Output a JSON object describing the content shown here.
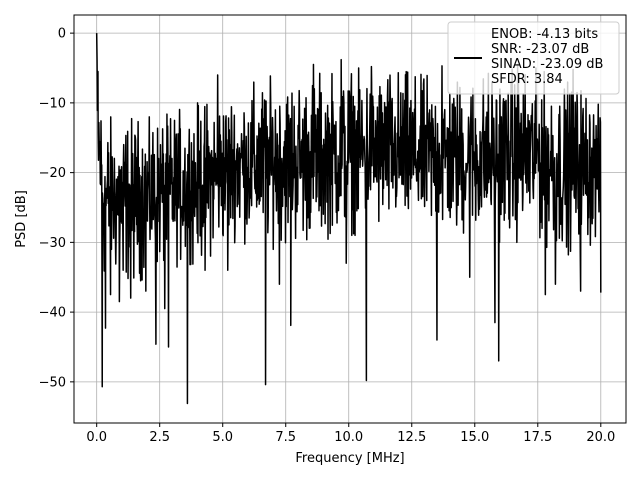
{
  "chart_data": {
    "type": "line",
    "xlabel": "Frequency [MHz]",
    "ylabel": "PSD [dB]",
    "xlim": [
      -0.9,
      21.0
    ],
    "ylim": [
      -55.9,
      2.6
    ],
    "xticks": [
      0.0,
      2.5,
      5.0,
      7.5,
      10.0,
      12.5,
      15.0,
      17.5,
      20.0
    ],
    "xtick_labels": [
      "0.0",
      "2.5",
      "5.0",
      "7.5",
      "10.0",
      "12.5",
      "15.0",
      "17.5",
      "20.0"
    ],
    "yticks": [
      0,
      -10,
      -20,
      -30,
      -40,
      -50
    ],
    "ytick_labels": [
      "0",
      "−10",
      "−20",
      "−30",
      "−40",
      "−50"
    ],
    "grid": true,
    "legend": {
      "placement": "top-right",
      "lines": [
        "ENOB: -4.13 bits",
        "SNR: -23.07 dB",
        "SINAD: -23.09 dB",
        "SFDR: 3.84"
      ]
    },
    "series": [
      {
        "color": "#000000",
        "x_start": 0.0,
        "x_end": 20.0,
        "peak": {
          "x": 0.0,
          "y": 0.0
        },
        "envelope": {
          "x": [
            0.0,
            0.1,
            0.3,
            0.5,
            1.0,
            1.5,
            2.5,
            4.0,
            5.5,
            7.0,
            8.5,
            10.0,
            11.5,
            13.0,
            14.5,
            16.0,
            17.5,
            18.5,
            19.5,
            20.0
          ],
          "upper": [
            0.0,
            -6.0,
            -13.0,
            -12.0,
            -12.0,
            -12.0,
            -12.0,
            -10.0,
            -8.0,
            -6.0,
            -6.0,
            -5.0,
            -5.0,
            -6.0,
            -6.0,
            -5.0,
            -5.0,
            -7.0,
            -7.0,
            -11.0
          ],
          "lower": [
            -26.0,
            -27.0,
            -36.0,
            -35.0,
            -36.0,
            -36.0,
            -34.0,
            -33.0,
            -30.0,
            -31.0,
            -30.0,
            -29.0,
            -29.0,
            -29.0,
            -30.0,
            -30.0,
            -30.0,
            -32.0,
            -31.0,
            -29.0
          ]
        },
        "dips": [
          {
            "x": 0.22,
            "y": -50.7
          },
          {
            "x": 0.35,
            "y": -42.3
          },
          {
            "x": 0.55,
            "y": -37.5
          },
          {
            "x": 0.9,
            "y": -38.5
          },
          {
            "x": 1.05,
            "y": -34.0
          },
          {
            "x": 1.35,
            "y": -38.0
          },
          {
            "x": 1.95,
            "y": -37.0
          },
          {
            "x": 2.35,
            "y": -44.6
          },
          {
            "x": 2.7,
            "y": -39.5
          },
          {
            "x": 2.85,
            "y": -45.0
          },
          {
            "x": 3.6,
            "y": -53.1
          },
          {
            "x": 4.3,
            "y": -34.0
          },
          {
            "x": 5.2,
            "y": -34.0
          },
          {
            "x": 6.7,
            "y": -50.4
          },
          {
            "x": 7.25,
            "y": -36.0
          },
          {
            "x": 7.7,
            "y": -41.9
          },
          {
            "x": 9.9,
            "y": -33.0
          },
          {
            "x": 10.7,
            "y": -49.8
          },
          {
            "x": 13.5,
            "y": -44.0
          },
          {
            "x": 14.8,
            "y": -35.0
          },
          {
            "x": 15.8,
            "y": -41.5
          },
          {
            "x": 15.95,
            "y": -47.0
          },
          {
            "x": 17.8,
            "y": -37.5
          },
          {
            "x": 18.2,
            "y": -36.0
          },
          {
            "x": 19.2,
            "y": -37.0
          },
          {
            "x": 20.0,
            "y": -37.2
          }
        ],
        "spikes": [
          {
            "x": 0.05,
            "y": -5.5
          },
          {
            "x": 4.8,
            "y": -6.0
          },
          {
            "x": 8.6,
            "y": -4.5
          },
          {
            "x": 9.7,
            "y": -3.8
          },
          {
            "x": 10.9,
            "y": -4.8
          },
          {
            "x": 13.7,
            "y": -4.7
          },
          {
            "x": 16.7,
            "y": -4.5
          },
          {
            "x": 18.9,
            "y": -5.2
          }
        ]
      }
    ]
  }
}
